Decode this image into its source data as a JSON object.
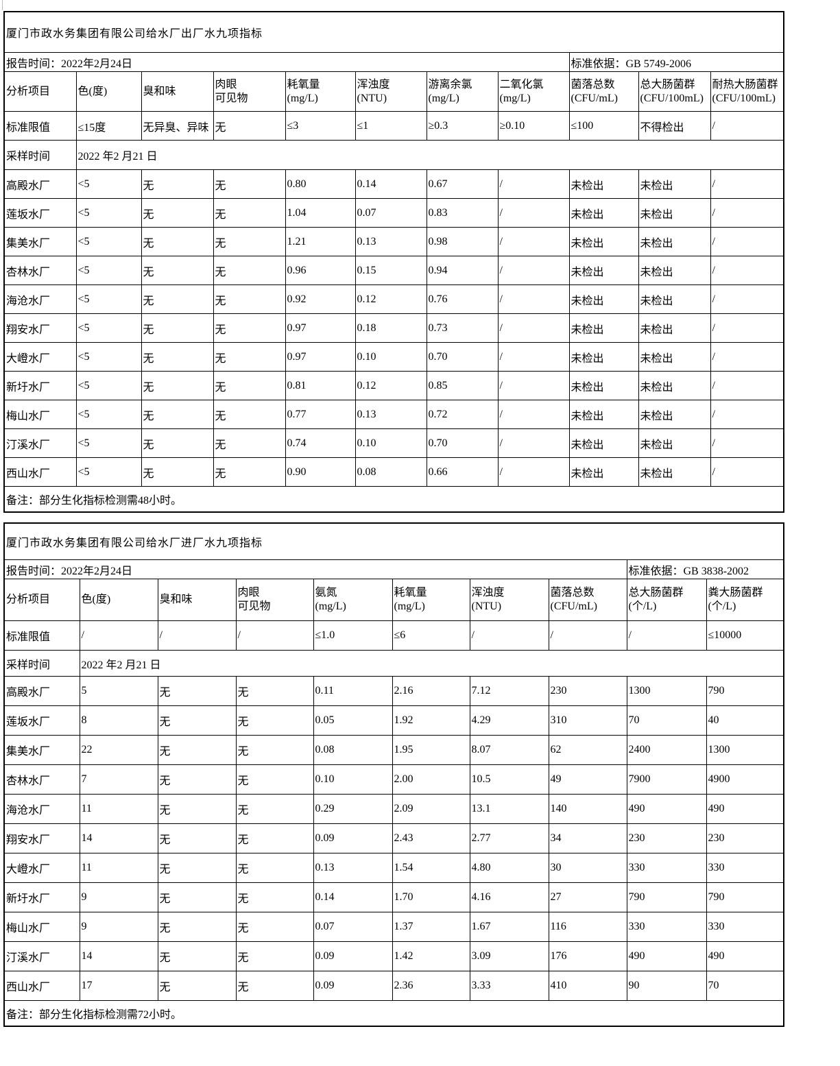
{
  "page_bg": "#ffffff",
  "border_color": "#000000",
  "tables": [
    {
      "title": "厦门市政水务集团有限公司给水厂出厂水九项指标",
      "report_time": "报告时间：2022年2月24日",
      "standard_ref": "标准依据：GB 5749-2006",
      "analysis_item_label": "分析项目",
      "limit_label": "标准限值",
      "sample_label": "采样时间",
      "sample_time": "2022    年2         月21        日",
      "columns": [
        [
          "色(度)"
        ],
        [
          "臭和味"
        ],
        [
          "肉眼",
          "可见物"
        ],
        [
          "耗氧量",
          "(mg/L)"
        ],
        [
          "浑浊度",
          "(NTU)"
        ],
        [
          "游离余氯",
          "(mg/L)"
        ],
        [
          "二氧化氯",
          "(mg/L)"
        ],
        [
          "菌落总数",
          "(CFU/mL)"
        ],
        [
          "总大肠菌群",
          "(CFU/100mL)"
        ],
        [
          "耐热大肠菌群",
          "(CFU/100mL)"
        ]
      ],
      "limits": [
        "≤15度",
        "无异臭、异味",
        "无",
        "≤3",
        "≤1",
        "≥0.3",
        "≥0.10",
        "≤100",
        "不得检出",
        "/"
      ],
      "rows": [
        {
          "plant": "高殿水厂",
          "values": [
            "<5",
            "无",
            "无",
            "0.80",
            "0.14",
            "0.67",
            "/",
            "未检出",
            "未检出",
            "/"
          ]
        },
        {
          "plant": "莲坂水厂",
          "values": [
            "<5",
            "无",
            "无",
            "1.04",
            "0.07",
            "0.83",
            "/",
            "未检出",
            "未检出",
            "/"
          ]
        },
        {
          "plant": "集美水厂",
          "values": [
            "<5",
            "无",
            "无",
            "1.21",
            "0.13",
            "0.98",
            "/",
            "未检出",
            "未检出",
            "/"
          ]
        },
        {
          "plant": "杏林水厂",
          "values": [
            "<5",
            "无",
            "无",
            "0.96",
            "0.15",
            "0.94",
            "/",
            "未检出",
            "未检出",
            "/"
          ]
        },
        {
          "plant": "海沧水厂",
          "values": [
            "<5",
            "无",
            "无",
            "0.92",
            "0.12",
            "0.76",
            "/",
            "未检出",
            "未检出",
            "/"
          ]
        },
        {
          "plant": "翔安水厂",
          "values": [
            "<5",
            "无",
            "无",
            "0.97",
            "0.18",
            "0.73",
            "/",
            "未检出",
            "未检出",
            "/"
          ]
        },
        {
          "plant": "大嶝水厂",
          "values": [
            "<5",
            "无",
            "无",
            "0.97",
            "0.10",
            "0.70",
            "/",
            "未检出",
            "未检出",
            "/"
          ]
        },
        {
          "plant": "新圩水厂",
          "values": [
            "<5",
            "无",
            "无",
            "0.81",
            "0.12",
            "0.85",
            "/",
            "未检出",
            "未检出",
            "/"
          ]
        },
        {
          "plant": "梅山水厂",
          "values": [
            "<5",
            "无",
            "无",
            "0.77",
            "0.13",
            "0.72",
            "/",
            "未检出",
            "未检出",
            "/"
          ]
        },
        {
          "plant": "汀溪水厂",
          "values": [
            "<5",
            "无",
            "无",
            "0.74",
            "0.10",
            "0.70",
            "/",
            "未检出",
            "未检出",
            "/"
          ]
        },
        {
          "plant": "西山水厂",
          "values": [
            "<5",
            "无",
            "无",
            "0.90",
            "0.08",
            "0.66",
            "/",
            "未检出",
            "未检出",
            "/"
          ]
        }
      ],
      "note": "备注：部分生化指标检测需48小时。"
    },
    {
      "title": "厦门市政水务集团有限公司给水厂进厂水九项指标",
      "report_time": "报告时间：2022年2月24日",
      "standard_ref": "标准依据：GB 3838-2002",
      "analysis_item_label": "分析项目",
      "limit_label": "标准限值",
      "sample_label": "采样时间",
      "sample_time": "2022    年2         月21        日",
      "columns": [
        [
          "色(度)"
        ],
        [
          "臭和味"
        ],
        [
          "肉眼",
          "可见物"
        ],
        [
          "氨氮",
          "(mg/L)"
        ],
        [
          "耗氧量",
          "(mg/L)"
        ],
        [
          "浑浊度",
          "(NTU)"
        ],
        [
          "菌落总数",
          "(CFU/mL)"
        ],
        [
          "总大肠菌群",
          "(个/L)"
        ],
        [
          "粪大肠菌群",
          "(个/L)"
        ]
      ],
      "limits": [
        "/",
        "/",
        "/",
        "≤1.0",
        "≤6",
        "/",
        "/",
        "/",
        "≤10000"
      ],
      "rows": [
        {
          "plant": "高殿水厂",
          "values": [
            "5",
            "无",
            "无",
            "0.11",
            "2.16",
            "7.12",
            "230",
            "1300",
            "790"
          ]
        },
        {
          "plant": "莲坂水厂",
          "values": [
            "8",
            "无",
            "无",
            "0.05",
            "1.92",
            "4.29",
            "310",
            "70",
            "40"
          ]
        },
        {
          "plant": "集美水厂",
          "values": [
            "22",
            "无",
            "无",
            "0.08",
            "1.95",
            "8.07",
            "62",
            "2400",
            "1300"
          ]
        },
        {
          "plant": "杏林水厂",
          "values": [
            "7",
            "无",
            "无",
            "0.10",
            "2.00",
            "10.5",
            "49",
            "7900",
            "4900"
          ]
        },
        {
          "plant": "海沧水厂",
          "values": [
            "11",
            "无",
            "无",
            "0.29",
            "2.09",
            "13.1",
            "140",
            "490",
            "490"
          ]
        },
        {
          "plant": "翔安水厂",
          "values": [
            "14",
            "无",
            "无",
            "0.09",
            "2.43",
            "2.77",
            "34",
            "230",
            "230"
          ]
        },
        {
          "plant": "大嶝水厂",
          "values": [
            "11",
            "无",
            "无",
            "0.13",
            "1.54",
            "4.80",
            "30",
            "330",
            "330"
          ]
        },
        {
          "plant": "新圩水厂",
          "values": [
            "9",
            "无",
            "无",
            "0.14",
            "1.70",
            "4.16",
            "27",
            "790",
            "790"
          ]
        },
        {
          "plant": "梅山水厂",
          "values": [
            "9",
            "无",
            "无",
            "0.07",
            "1.37",
            "1.67",
            "116",
            "330",
            "330"
          ]
        },
        {
          "plant": "汀溪水厂",
          "values": [
            "14",
            "无",
            "无",
            "0.09",
            "1.42",
            "3.09",
            "176",
            "490",
            "490"
          ]
        },
        {
          "plant": "西山水厂",
          "values": [
            "17",
            "无",
            "无",
            "0.09",
            "2.36",
            "3.33",
            "410",
            "90",
            "70"
          ]
        }
      ],
      "note": "备注：部分生化指标检测需72小时。"
    }
  ]
}
